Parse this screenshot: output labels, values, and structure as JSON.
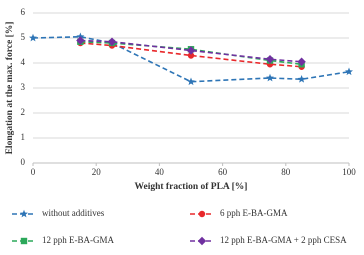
{
  "chart_data": {
    "type": "line",
    "x_label": "Weight fraction of PLA [%]",
    "y_label": "Elongation at the max. force [%]",
    "x": [
      0,
      15,
      25,
      50,
      75,
      85,
      100
    ],
    "series": [
      {
        "name": "without additives",
        "color": "#2e75b6",
        "marker": "star",
        "values": [
          5.0,
          5.05,
          4.8,
          3.25,
          3.4,
          3.35,
          3.65
        ]
      },
      {
        "name": "6 pph E-BA-GMA",
        "color": "#e8282b",
        "marker": "circle",
        "values": [
          null,
          4.8,
          4.7,
          4.3,
          3.95,
          3.85,
          null
        ]
      },
      {
        "name": "12 pph E-BA-GMA",
        "color": "#2ca85a",
        "marker": "square",
        "values": [
          null,
          4.85,
          4.8,
          4.55,
          4.1,
          3.95,
          null
        ]
      },
      {
        "name": "12 pph E-BA-GMA + 2 pph CESA",
        "color": "#7030a0",
        "marker": "diamond",
        "values": [
          null,
          4.9,
          4.85,
          4.5,
          4.15,
          4.05,
          null
        ]
      }
    ],
    "xlim": [
      0,
      100
    ],
    "xticks": [
      0,
      20,
      40,
      60,
      80,
      100
    ],
    "ylim": [
      0,
      6
    ],
    "yticks": [
      0,
      1,
      2,
      3,
      4,
      5,
      6
    ],
    "grid": true
  }
}
